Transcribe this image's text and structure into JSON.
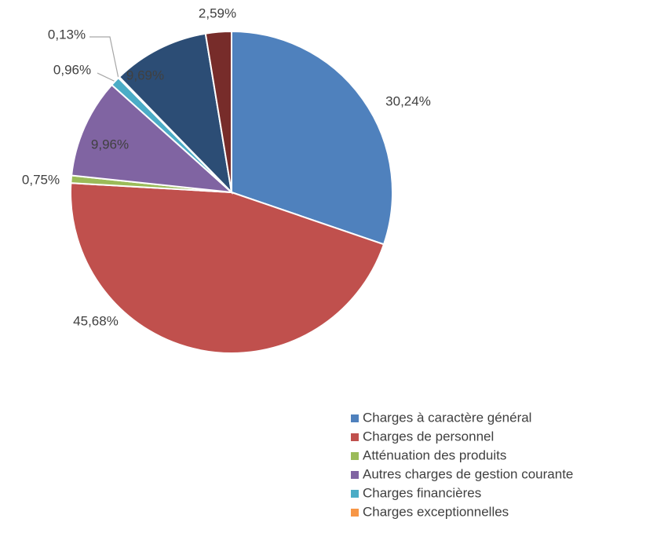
{
  "chart_data": {
    "type": "pie",
    "categories": [
      "Charges à caractère général",
      "Charges de personnel",
      "Atténuation des produits",
      "Autres charges de gestion courante",
      "Charges financières",
      "Charges exceptionnelles",
      null,
      null
    ],
    "values": [
      30.24,
      45.68,
      0.75,
      9.96,
      0.96,
      0.13,
      9.69,
      2.59
    ],
    "value_labels": [
      "30,24%",
      "45,68%",
      "0,75%",
      "9,96%",
      "0,96%",
      "0,13%",
      "9,69%",
      "2,59%"
    ],
    "colors": [
      "#4f81bd",
      "#c0504d",
      "#9bbb59",
      "#8064a2",
      "#4bacc6",
      "#f79646",
      "#2c4d75",
      "#772c2a"
    ],
    "legend": "bottom-right"
  }
}
